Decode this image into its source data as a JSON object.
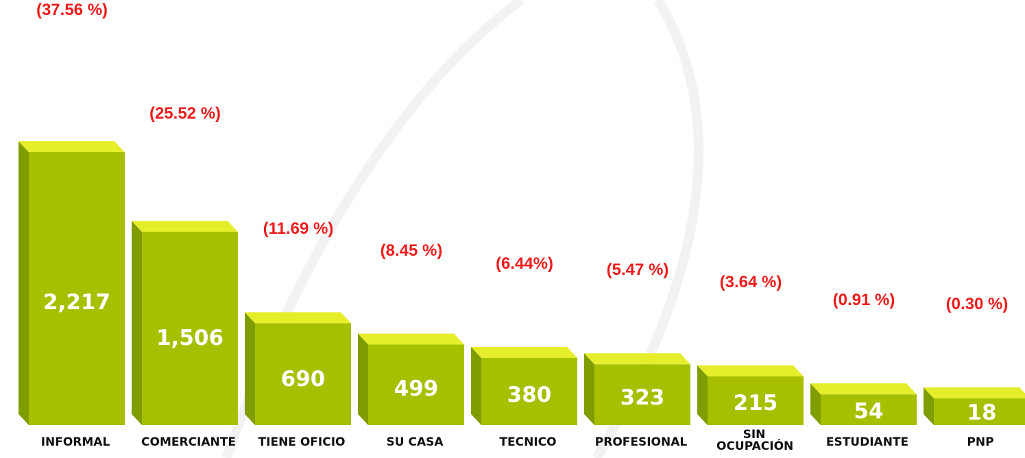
{
  "chart_data": {
    "type": "bar3d",
    "categories": [
      "INFORMAL",
      "COMERCIANTE",
      "TIENE OFICIO",
      "SU CASA",
      "TECNICO",
      "PROFESIONAL",
      "SIN OCUPACIÓN",
      "ESTUDIANTE",
      "PNP"
    ],
    "values": [
      2217,
      1506,
      690,
      499,
      380,
      323,
      215,
      54,
      18
    ],
    "value_labels": [
      "2,217",
      "1,506",
      "690",
      "499",
      "380",
      "323",
      "215",
      "54",
      "18"
    ],
    "percent_labels": [
      "(37.56 %)",
      "(25.52 %)",
      "(11.69 %)",
      "(8.45 %)",
      "(6.44%)",
      "(5.47 %)",
      "(3.64 %)",
      "(0.91 %)",
      "(0.30 %)"
    ],
    "color": "#a6c000"
  }
}
